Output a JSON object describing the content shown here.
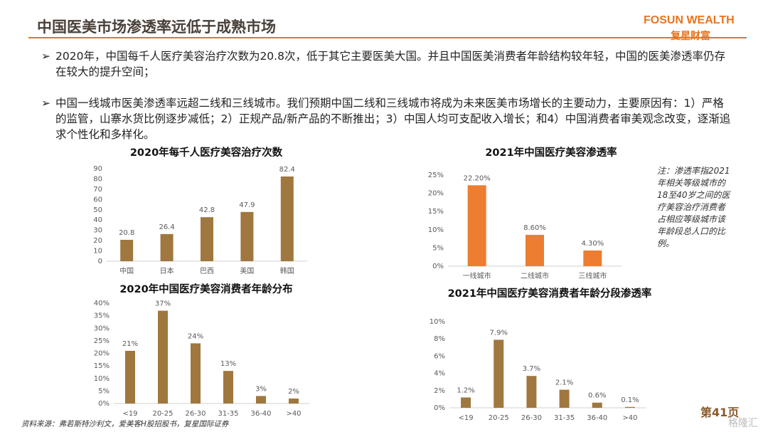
{
  "header": {
    "title": "中国医美市场渗透率远低于成熟市场",
    "logo": "FOSUN WEALTH",
    "logo_cn": "复星财富"
  },
  "bullets": [
    "2020年，中国每千人医疗美容治疗次数为20.8次，低于其它主要医美大国。并且中国医美消费者年龄结构较年轻，中国的医美渗透率仍存在较大的提升空间；",
    "中国一线城市医美渗透率远超二线和三线城市。我们预期中国二线和三线城市将成为未来医美市场增长的主要动力，主要原因有：1）严格的监管，山寨水货比例逐步减低；2）正规产品/新产品的不断推出；3）中国人均可支配收入增长；和4）中国消费者审美观念改变，逐渐追求个性化和多样化。"
  ],
  "note": "注：渗透率指2021年相关等级城市的18至40岁之间的医疗美容治疗消费者占相应等级城市该年龄段总人口的比例。",
  "footer": {
    "source": "资料来源：弗若斯特沙利文，爱美客H股招股书，复星国际证券",
    "page": "第41页",
    "watermark": "格隆汇"
  },
  "chart_data": [
    {
      "type": "bar",
      "title": "2020年每千人医疗美容治疗次数",
      "categories": [
        "中国",
        "日本",
        "巴西",
        "美国",
        "韩国"
      ],
      "values": [
        20.8,
        26.4,
        42.8,
        47.9,
        82.4
      ],
      "color": "#a0773f",
      "ylim": [
        0,
        90
      ],
      "yticks": [
        0,
        10,
        20,
        30,
        40,
        50,
        60,
        70,
        80,
        90
      ]
    },
    {
      "type": "bar",
      "title": "2021年中国医疗美容渗透率",
      "categories": [
        "一线城市",
        "二线城市",
        "三线城市"
      ],
      "values": [
        22.2,
        8.6,
        4.3
      ],
      "value_labels": [
        "22.20%",
        "8.60%",
        "4.30%"
      ],
      "color": "#ed7d31",
      "ylim": [
        0,
        25
      ],
      "yticks": [
        {
          "value": 0,
          "label": "0%"
        },
        {
          "value": 5,
          "label": "5%"
        },
        {
          "value": 10,
          "label": "10%"
        },
        {
          "value": 15,
          "label": "15%"
        },
        {
          "value": 20,
          "label": "20%"
        },
        {
          "value": 25,
          "label": "25%"
        }
      ]
    },
    {
      "type": "bar",
      "title": "2020年中国医疗美容消费者年龄分布",
      "categories": [
        "<19",
        "20-25",
        "26-30",
        "31-35",
        "36-40",
        ">40"
      ],
      "values": [
        21,
        37,
        24,
        13,
        3,
        2
      ],
      "value_labels": [
        "21%",
        "37%",
        "24%",
        "13%",
        "3%",
        "2%"
      ],
      "color": "#a0773f",
      "ylim": [
        0,
        40
      ],
      "yticks": [
        {
          "value": 0,
          "label": "0%"
        },
        {
          "value": 5,
          "label": "5%"
        },
        {
          "value": 10,
          "label": "10%"
        },
        {
          "value": 15,
          "label": "15%"
        },
        {
          "value": 20,
          "label": "20%"
        },
        {
          "value": 25,
          "label": "25%"
        },
        {
          "value": 30,
          "label": "30%"
        },
        {
          "value": 35,
          "label": "35%"
        },
        {
          "value": 40,
          "label": "40%"
        }
      ]
    },
    {
      "type": "bar",
      "title": "2021年中国医疗美容消费者年龄分段渗透率",
      "categories": [
        "<19",
        "20-25",
        "26-30",
        "31-35",
        "36-40",
        ">40"
      ],
      "values": [
        1.2,
        7.9,
        3.7,
        2.1,
        0.6,
        0.1
      ],
      "value_labels": [
        "1.2%",
        "7.9%",
        "3.7%",
        "2.1%",
        "0.6%",
        "0.1%"
      ],
      "color": "#a0773f",
      "ylim": [
        0,
        10
      ],
      "yticks": [
        {
          "value": 0,
          "label": "0%"
        },
        {
          "value": 2,
          "label": "2%"
        },
        {
          "value": 4,
          "label": "4%"
        },
        {
          "value": 6,
          "label": "6%"
        },
        {
          "value": 8,
          "label": "8%"
        },
        {
          "value": 10,
          "label": "10%"
        }
      ]
    }
  ]
}
